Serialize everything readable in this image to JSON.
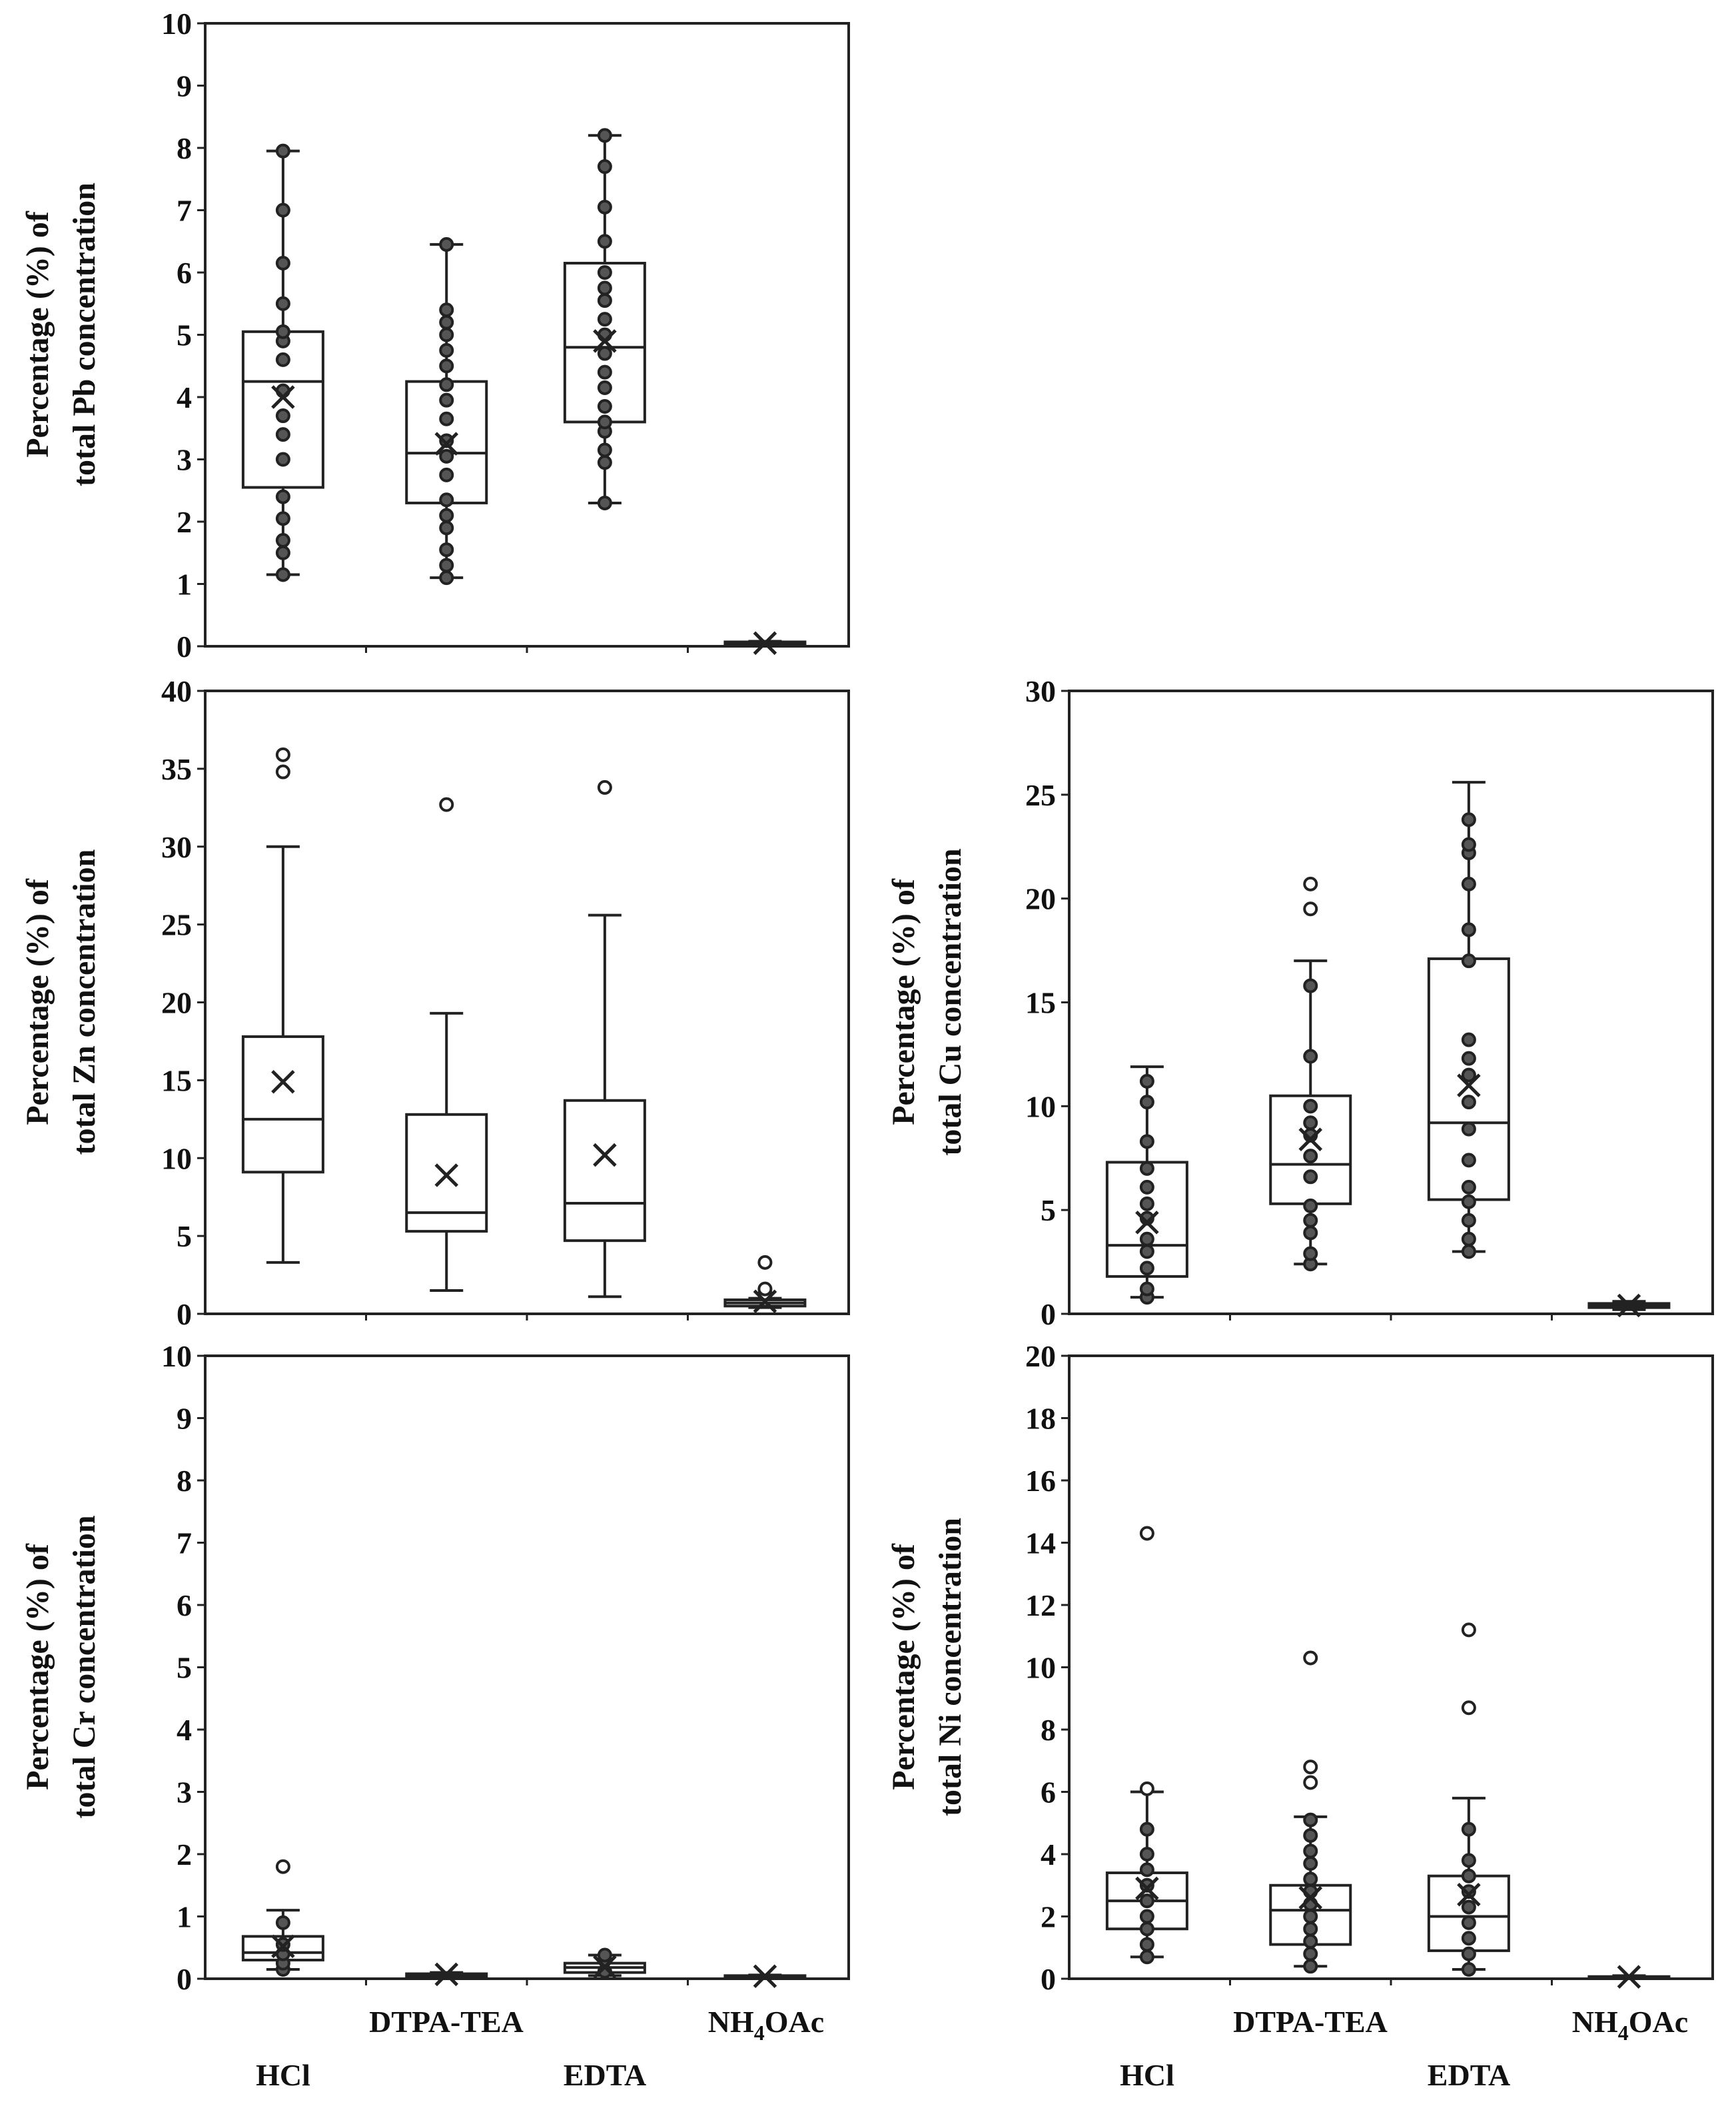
{
  "categories": [
    "HCl",
    "DTPA-TEA",
    "EDTA",
    "NH4OAc"
  ],
  "category_labels": {
    "hcl": "HCl",
    "dtpa": "DTPA-TEA",
    "edta": "EDTA",
    "nh4_main": "NH",
    "nh4_sub": "4",
    "nh4_rest": "OAc"
  },
  "chart_data": [
    {
      "id": "pb",
      "type": "box",
      "ylabel_line1": "Percentage (%) of",
      "ylabel_line2": "total Pb concentration",
      "ylim": [
        0,
        10
      ],
      "yticks": [
        0,
        1,
        2,
        3,
        4,
        5,
        6,
        7,
        8,
        9,
        10
      ],
      "boxes": [
        {
          "category": "HCl",
          "min": 1.15,
          "q1": 2.55,
          "median": 4.25,
          "q3": 5.05,
          "max": 7.95,
          "mean": 4.0,
          "points": [
            1.15,
            1.5,
            1.7,
            2.05,
            2.4,
            3.0,
            3.4,
            3.7,
            4.1,
            4.6,
            4.9,
            5.05,
            5.5,
            6.15,
            7.0,
            7.95
          ]
        },
        {
          "category": "DTPA-TEA",
          "min": 1.1,
          "q1": 2.3,
          "median": 3.1,
          "q3": 4.25,
          "max": 6.45,
          "mean": 3.25,
          "points": [
            1.1,
            1.3,
            1.55,
            1.9,
            2.1,
            2.35,
            2.75,
            3.05,
            3.3,
            3.65,
            3.95,
            4.2,
            4.5,
            4.75,
            5.0,
            5.2,
            5.4,
            6.45
          ]
        },
        {
          "category": "EDTA",
          "min": 2.3,
          "q1": 3.6,
          "median": 4.8,
          "q3": 6.15,
          "max": 8.2,
          "mean": 4.9,
          "points": [
            2.3,
            2.95,
            3.15,
            3.45,
            3.6,
            3.85,
            4.15,
            4.4,
            4.7,
            5.0,
            5.25,
            5.55,
            5.75,
            6.0,
            6.5,
            7.05,
            7.7,
            8.2
          ]
        },
        {
          "category": "NH4OAc",
          "min": 0.02,
          "q1": 0.03,
          "median": 0.05,
          "q3": 0.07,
          "max": 0.08,
          "mean": 0.05,
          "points": []
        }
      ]
    },
    {
      "id": "zn",
      "type": "box",
      "ylabel_line1": "Percentage (%) of",
      "ylabel_line2": "total Zn concentration",
      "ylim": [
        0,
        40
      ],
      "yticks": [
        0,
        5,
        10,
        15,
        20,
        25,
        30,
        35,
        40
      ],
      "boxes": [
        {
          "category": "HCl",
          "min": 3.3,
          "q1": 9.1,
          "median": 12.5,
          "q3": 17.8,
          "max": 30.0,
          "mean": 14.9,
          "points": [
            34.8,
            35.9
          ],
          "outliers_only": true
        },
        {
          "category": "DTPA-TEA",
          "min": 1.5,
          "q1": 5.3,
          "median": 6.5,
          "q3": 12.8,
          "max": 19.3,
          "mean": 8.9,
          "points": [
            32.7
          ],
          "outliers_only": true
        },
        {
          "category": "EDTA",
          "min": 1.1,
          "q1": 4.7,
          "median": 7.1,
          "q3": 13.7,
          "max": 25.6,
          "mean": 10.2,
          "points": [
            33.8
          ],
          "outliers_only": true
        },
        {
          "category": "NH4OAc",
          "min": 0.4,
          "q1": 0.5,
          "median": 0.7,
          "q3": 0.9,
          "max": 1.0,
          "mean": 0.8,
          "points": [
            1.3,
            1.6,
            3.3
          ],
          "outliers_only": true
        }
      ]
    },
    {
      "id": "cu",
      "type": "box",
      "ylabel_line1": "Percentage (%) of",
      "ylabel_line2": "total Cu concentration",
      "ylim": [
        0,
        30
      ],
      "yticks": [
        0,
        5,
        10,
        15,
        20,
        25,
        30
      ],
      "boxes": [
        {
          "category": "HCl",
          "min": 0.8,
          "q1": 1.8,
          "median": 3.3,
          "q3": 7.3,
          "max": 11.9,
          "mean": 4.4,
          "points": [
            0.8,
            1.2,
            2.2,
            3.0,
            3.6,
            4.6,
            5.3,
            6.1,
            7.0,
            8.3,
            10.2,
            11.2
          ]
        },
        {
          "category": "DTPA-TEA",
          "min": 2.4,
          "q1": 5.3,
          "median": 7.2,
          "q3": 10.5,
          "max": 17.0,
          "mean": 8.4,
          "points": [
            2.4,
            2.9,
            3.9,
            4.5,
            5.2,
            6.6,
            7.6,
            8.6,
            9.2,
            10.0,
            12.4,
            15.8,
            19.5,
            20.7
          ]
        },
        {
          "category": "EDTA",
          "min": 3.0,
          "q1": 5.5,
          "median": 9.2,
          "q3": 17.1,
          "max": 25.6,
          "mean": 11.0,
          "points": [
            3.0,
            3.6,
            4.5,
            5.4,
            6.1,
            7.4,
            8.9,
            10.2,
            11.5,
            12.3,
            13.2,
            17.0,
            18.5,
            20.7,
            22.2,
            22.6,
            23.8
          ]
        },
        {
          "category": "NH4OAc",
          "min": 0.2,
          "q1": 0.3,
          "median": 0.4,
          "q3": 0.5,
          "max": 0.6,
          "mean": 0.4,
          "points": []
        }
      ]
    },
    {
      "id": "cr",
      "type": "box",
      "ylabel_line1": "Percentage (%) of",
      "ylabel_line2": "total Cr concentration",
      "ylim": [
        0,
        10
      ],
      "yticks": [
        0,
        1,
        2,
        3,
        4,
        5,
        6,
        7,
        8,
        9,
        10
      ],
      "boxes": [
        {
          "category": "HCl",
          "min": 0.15,
          "q1": 0.3,
          "median": 0.42,
          "q3": 0.68,
          "max": 1.1,
          "mean": 0.52,
          "points": [
            0.15,
            0.25,
            0.4,
            0.55,
            0.9,
            1.8
          ]
        },
        {
          "category": "DTPA-TEA",
          "min": 0.02,
          "q1": 0.04,
          "median": 0.06,
          "q3": 0.08,
          "max": 0.1,
          "mean": 0.07,
          "points": []
        },
        {
          "category": "EDTA",
          "min": 0.05,
          "q1": 0.1,
          "median": 0.18,
          "q3": 0.25,
          "max": 0.38,
          "mean": 0.19,
          "points": [
            0.12,
            0.3,
            0.38
          ]
        },
        {
          "category": "NH4OAc",
          "min": 0.01,
          "q1": 0.02,
          "median": 0.03,
          "q3": 0.05,
          "max": 0.06,
          "mean": 0.04,
          "points": []
        }
      ]
    },
    {
      "id": "ni",
      "type": "box",
      "ylabel_line1": "Percentage (%) of",
      "ylabel_line2": "total Ni concentration",
      "ylim": [
        0,
        20
      ],
      "yticks": [
        0,
        2,
        4,
        6,
        8,
        10,
        12,
        14,
        16,
        18,
        20
      ],
      "boxes": [
        {
          "category": "HCl",
          "min": 0.7,
          "q1": 1.6,
          "median": 2.5,
          "q3": 3.4,
          "max": 6.0,
          "mean": 2.9,
          "points": [
            0.7,
            1.1,
            1.6,
            2.0,
            2.5,
            3.0,
            3.5,
            4.0,
            4.8,
            6.1,
            14.3
          ]
        },
        {
          "category": "DTPA-TEA",
          "min": 0.4,
          "q1": 1.1,
          "median": 2.2,
          "q3": 3.0,
          "max": 5.2,
          "mean": 2.6,
          "points": [
            0.4,
            0.8,
            1.2,
            1.6,
            2.0,
            2.4,
            2.8,
            3.2,
            3.7,
            4.1,
            4.6,
            5.1,
            6.3,
            6.8,
            10.3
          ]
        },
        {
          "category": "EDTA",
          "min": 0.3,
          "q1": 0.9,
          "median": 2.0,
          "q3": 3.3,
          "max": 5.8,
          "mean": 2.7,
          "points": [
            0.3,
            0.8,
            1.3,
            1.8,
            2.3,
            2.8,
            3.3,
            3.8,
            4.8,
            8.7,
            11.2
          ]
        },
        {
          "category": "NH4OAc",
          "min": 0.02,
          "q1": 0.03,
          "median": 0.05,
          "q3": 0.07,
          "max": 0.1,
          "mean": 0.06,
          "points": []
        }
      ]
    }
  ]
}
